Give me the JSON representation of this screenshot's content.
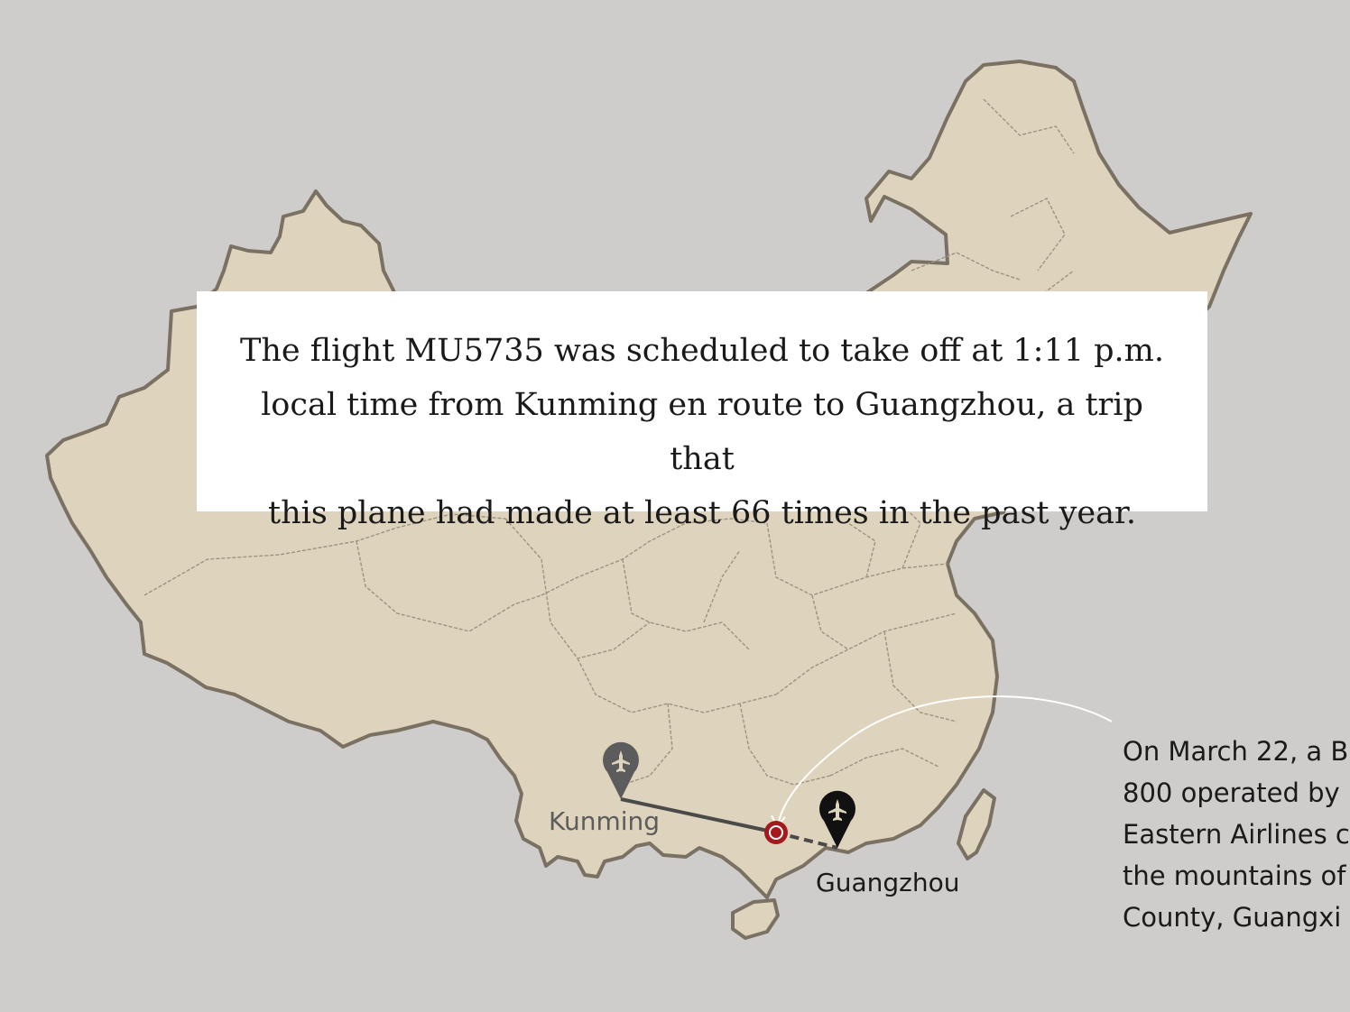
{
  "story": {
    "lines": [
      "The flight MU5735 was scheduled to take off at 1:11 p.m.",
      "local time from Kunming en route to Guangzhou, a trip that",
      "this plane had made at least 66 times in the past year."
    ]
  },
  "map": {
    "region": "China",
    "land_color": "#ded3bc",
    "border_color": "#7b7163",
    "background_color": "#cfcdcb",
    "crash_marker_color": "#a5191c"
  },
  "places": {
    "origin": {
      "label": "Kunming",
      "icon": "airplane-pin-icon",
      "color": "#5c5c5c"
    },
    "destination": {
      "label": "Guangzhou",
      "icon": "airplane-pin-icon",
      "color": "#111111"
    },
    "crash_site": {
      "icon": "crash-site-icon"
    }
  },
  "annotation": {
    "lines": [
      "On March 22, a B",
      "800 operated by",
      "Eastern Airlines c",
      "the mountains of",
      "County, Guangxi"
    ]
  }
}
